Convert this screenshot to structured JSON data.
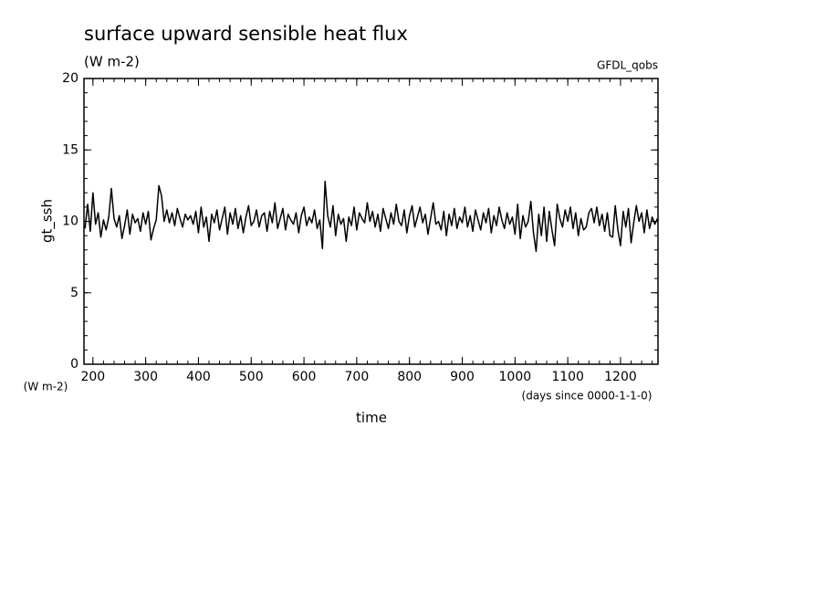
{
  "chart_data": {
    "type": "line",
    "title": "surface upward sensible heat flux",
    "subtitle": "(W m-2)",
    "source": "GFDL_qobs",
    "y_label": "gt_ssh",
    "y_unit": "(W m-2)",
    "x_label": "time",
    "x_unit": "(days since 0000-1-1-0)",
    "xlim": [
      183,
      1271
    ],
    "xticks": [
      200,
      300,
      400,
      500,
      600,
      700,
      800,
      900,
      1000,
      1100,
      1200
    ],
    "ylim": [
      0,
      20
    ],
    "yticks": [
      0,
      5,
      10,
      15,
      20
    ],
    "series": [
      {
        "color": "#000000",
        "x": [
          185,
          190,
          195,
          200,
          205,
          210,
          215,
          220,
          225,
          230,
          235,
          240,
          245,
          250,
          255,
          260,
          265,
          270,
          275,
          280,
          285,
          290,
          295,
          300,
          305,
          310,
          315,
          320,
          325,
          330,
          335,
          340,
          345,
          350,
          355,
          360,
          365,
          370,
          375,
          380,
          385,
          390,
          395,
          400,
          405,
          410,
          415,
          420,
          425,
          430,
          435,
          440,
          445,
          450,
          455,
          460,
          465,
          470,
          475,
          480,
          485,
          490,
          495,
          500,
          505,
          510,
          515,
          520,
          525,
          530,
          535,
          540,
          545,
          550,
          555,
          560,
          565,
          570,
          575,
          580,
          585,
          590,
          595,
          600,
          605,
          610,
          615,
          620,
          625,
          630,
          635,
          640,
          645,
          650,
          655,
          660,
          665,
          670,
          675,
          680,
          685,
          690,
          695,
          700,
          705,
          710,
          715,
          720,
          725,
          730,
          735,
          740,
          745,
          750,
          755,
          760,
          765,
          770,
          775,
          780,
          785,
          790,
          795,
          800,
          805,
          810,
          815,
          820,
          825,
          830,
          835,
          840,
          845,
          850,
          855,
          860,
          865,
          870,
          875,
          880,
          885,
          890,
          895,
          900,
          905,
          910,
          915,
          920,
          925,
          930,
          935,
          940,
          945,
          950,
          955,
          960,
          965,
          970,
          975,
          980,
          985,
          990,
          995,
          1000,
          1005,
          1010,
          1015,
          1020,
          1025,
          1030,
          1035,
          1040,
          1045,
          1050,
          1055,
          1060,
          1065,
          1070,
          1075,
          1080,
          1085,
          1090,
          1095,
          1100,
          1105,
          1110,
          1115,
          1120,
          1125,
          1130,
          1135,
          1140,
          1145,
          1150,
          1155,
          1160,
          1165,
          1170,
          1175,
          1180,
          1185,
          1190,
          1195,
          1200,
          1205,
          1210,
          1215,
          1220,
          1225,
          1230,
          1235,
          1240,
          1245,
          1250,
          1255,
          1260,
          1265,
          1270
        ],
        "values": [
          9.5,
          11.2,
          9.3,
          12.0,
          9.8,
          10.6,
          8.9,
          10.1,
          9.4,
          10.3,
          12.3,
          10.2,
          9.6,
          10.4,
          8.8,
          9.7,
          10.8,
          9.1,
          10.5,
          9.9,
          10.2,
          9.3,
          10.6,
          9.8,
          10.7,
          8.7,
          9.5,
          10.1,
          12.5,
          11.8,
          10.0,
          10.8,
          9.9,
          10.6,
          9.7,
          10.9,
          10.2,
          9.6,
          10.5,
          10.1,
          10.4,
          9.8,
          10.7,
          9.2,
          11.0,
          9.6,
          10.3,
          8.6,
          10.5,
          9.9,
          10.8,
          9.4,
          10.2,
          11.0,
          9.1,
          10.6,
          9.8,
          10.9,
          9.5,
          10.4,
          9.2,
          10.3,
          11.1,
          9.7,
          10.0,
          10.8,
          9.6,
          10.4,
          10.6,
          9.3,
          10.7,
          9.9,
          11.3,
          9.5,
          10.2,
          10.9,
          9.4,
          10.5,
          10.1,
          9.8,
          10.6,
          9.2,
          10.4,
          11.0,
          9.7,
          10.3,
          9.9,
          10.8,
          9.5,
          10.1,
          8.1,
          12.8,
          10.4,
          9.6,
          11.1,
          9.0,
          10.5,
          9.8,
          10.2,
          8.6,
          10.3,
          9.7,
          11.0,
          9.4,
          10.6,
          10.2,
          9.9,
          11.3,
          10.0,
          10.7,
          9.6,
          10.5,
          9.3,
          10.9,
          10.2,
          9.5,
          10.6,
          9.8,
          11.2,
          10.0,
          9.7,
          10.8,
          9.2,
          10.4,
          11.1,
          9.6,
          10.3,
          11.0,
          9.9,
          10.5,
          9.1,
          10.2,
          11.3,
          9.8,
          10.0,
          9.4,
          10.7,
          9.0,
          10.5,
          9.7,
          10.9,
          9.5,
          10.3,
          9.9,
          11.0,
          9.6,
          10.4,
          9.3,
          10.8,
          10.1,
          9.4,
          10.6,
          9.9,
          10.9,
          9.2,
          10.4,
          9.7,
          11.0,
          10.1,
          9.5,
          10.6,
          9.8,
          10.3,
          9.1,
          11.2,
          8.8,
          10.4,
          9.6,
          10.0,
          11.4,
          9.2,
          7.9,
          10.5,
          9.0,
          11.0,
          8.6,
          10.7,
          9.4,
          8.3,
          11.2,
          10.2,
          9.6,
          10.8,
          10.0,
          11.0,
          9.5,
          10.6,
          9.0,
          10.2,
          9.4,
          9.6,
          10.6,
          10.9,
          9.9,
          11.0,
          9.7,
          10.5,
          9.3,
          10.6,
          9.0,
          8.9,
          11.1,
          9.4,
          8.3,
          10.7,
          9.6,
          10.9,
          8.5,
          9.9,
          11.1,
          10.0,
          10.6,
          9.2,
          10.8,
          9.5,
          10.3,
          9.8,
          10.2
        ]
      }
    ]
  }
}
